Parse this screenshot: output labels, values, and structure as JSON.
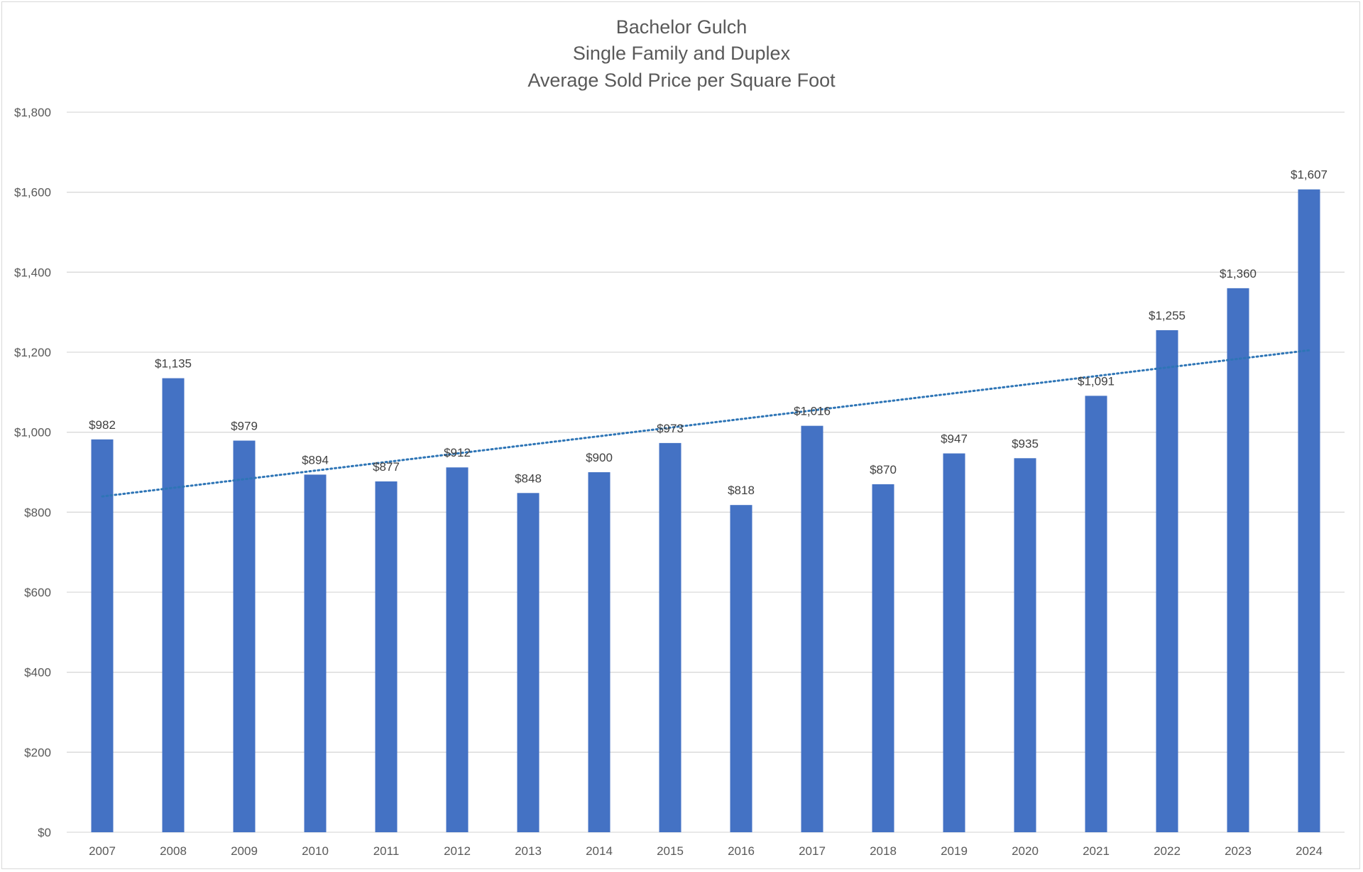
{
  "chart_data": {
    "type": "bar",
    "title": [
      "Bachelor Gulch",
      "Single Family and Duplex",
      "Average Sold Price per Square Foot"
    ],
    "categories": [
      "2007",
      "2008",
      "2009",
      "2010",
      "2011",
      "2012",
      "2013",
      "2014",
      "2015",
      "2016",
      "2017",
      "2018",
      "2019",
      "2020",
      "2021",
      "2022",
      "2023",
      "2024"
    ],
    "series": [
      {
        "values": [
          982,
          1135,
          979,
          894,
          877,
          912,
          848,
          900,
          973,
          818,
          1016,
          870,
          947,
          935,
          1091,
          1255,
          1360,
          1607
        ],
        "data_labels": [
          "$982",
          "$1,135",
          "$979",
          "$894",
          "$877",
          "$912",
          "$848",
          "$900",
          "$973",
          "$818",
          "$1,016",
          "$870",
          "$947",
          "$935",
          "$1,091",
          "$1,255",
          "$1,360",
          "$1,607"
        ],
        "color": "#4472c4"
      }
    ],
    "trendline": {
      "type": "linear",
      "style": "dotted",
      "color": "#2e75b6"
    },
    "ylim": [
      0,
      1800
    ],
    "y_ticks": [
      0,
      200,
      400,
      600,
      800,
      1000,
      1200,
      1400,
      1600,
      1800
    ],
    "y_tick_labels": [
      "$0",
      "$200",
      "$400",
      "$600",
      "$800",
      "$1,000",
      "$1,200",
      "$1,400",
      "$1,600",
      "$1,800"
    ],
    "xlabel": "",
    "ylabel": "",
    "grid": true,
    "gridline_color": "#d9d9d9",
    "legend": "none"
  }
}
